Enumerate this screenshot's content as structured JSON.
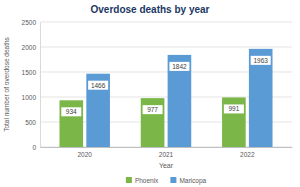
{
  "chart_data": {
    "type": "bar",
    "title": "Overdose deaths by year",
    "x_label": "Year",
    "y_label": "Total number of overdose deaths",
    "categories": [
      "2020",
      "2021",
      "2022"
    ],
    "series": [
      {
        "name": "Phoenix",
        "color": "#7ab648",
        "values": [
          934,
          977,
          991
        ]
      },
      {
        "name": "Maricopa",
        "color": "#5b9bd5",
        "values": [
          1466,
          1842,
          1963
        ]
      }
    ],
    "ylim": [
      0,
      2500
    ],
    "yticks": [
      0,
      500,
      1000,
      1500,
      2000,
      2500
    ],
    "grid": true,
    "legend": "bottom",
    "data_labels": true
  }
}
